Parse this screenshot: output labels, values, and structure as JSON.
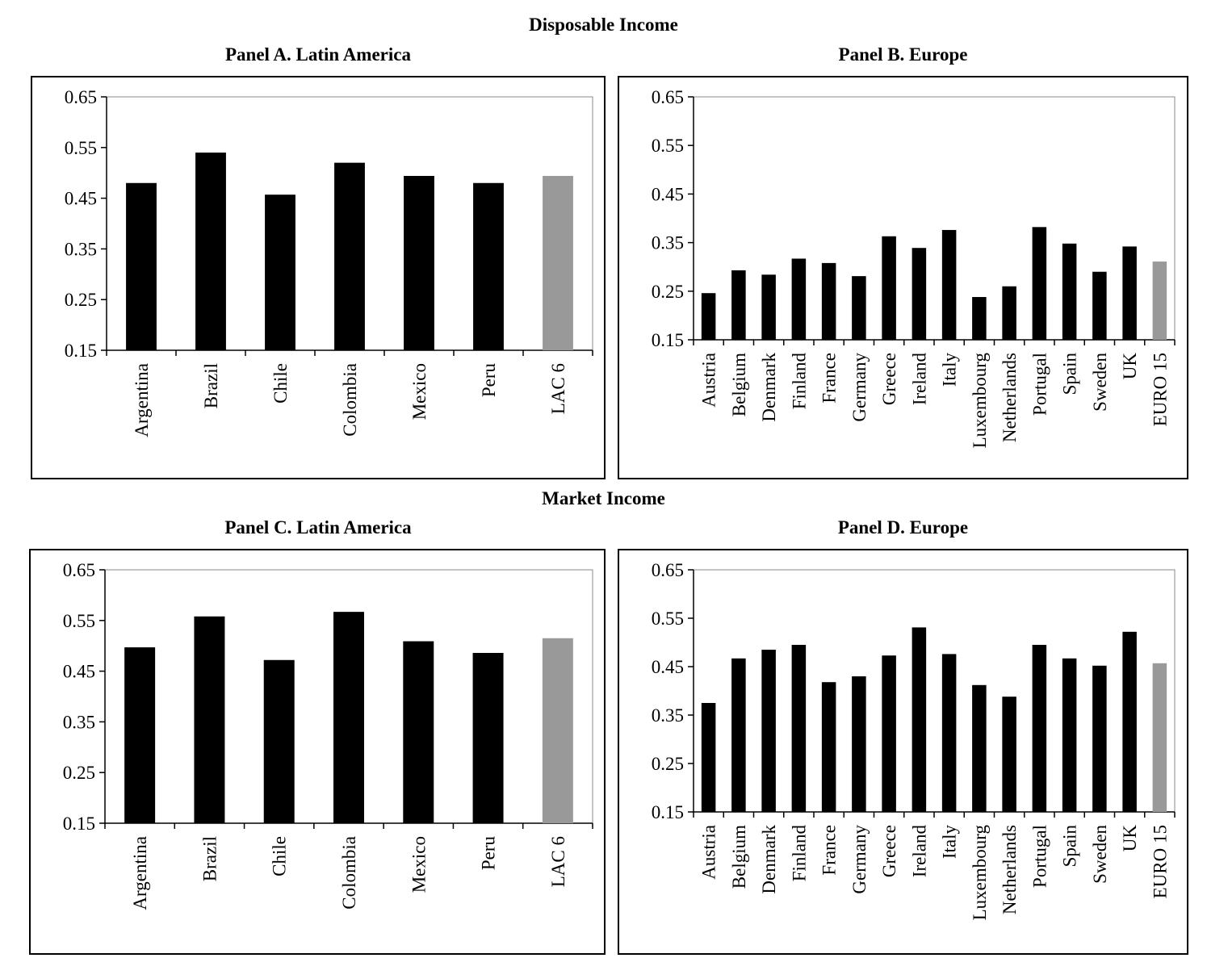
{
  "sections": {
    "disposable": "Disposable Income",
    "market": "Market Income"
  },
  "colors": {
    "bar": "#000000",
    "aggregate_bar": "#999999",
    "axis": "#000000"
  },
  "chart_data": [
    {
      "type": "bar",
      "title": "Panel A. Latin America",
      "categories": [
        "Argentina",
        "Brazil",
        "Chile",
        "Colombia",
        "Mexico",
        "Peru",
        "LAC 6"
      ],
      "values": [
        0.48,
        0.54,
        0.457,
        0.52,
        0.494,
        0.48,
        0.494
      ],
      "highlight": [
        "LAC 6"
      ],
      "ylim": [
        0.15,
        0.65
      ],
      "yticks": [
        "0.65",
        "0.55",
        "0.45",
        "0.35",
        "0.25",
        "0.15"
      ],
      "xlabel": "",
      "ylabel": "",
      "grid": false
    },
    {
      "type": "bar",
      "title": "Panel B. Europe",
      "categories": [
        "Austria",
        "Belgium",
        "Denmark",
        "Finland",
        "France",
        "Germany",
        "Greece",
        "Ireland",
        "Italy",
        "Luxembourg",
        "Netherlands",
        "Portugal",
        "Spain",
        "Sweden",
        "UK",
        "EURO 15"
      ],
      "values": [
        0.246,
        0.293,
        0.284,
        0.317,
        0.308,
        0.281,
        0.363,
        0.339,
        0.376,
        0.238,
        0.26,
        0.382,
        0.348,
        0.29,
        0.342,
        0.311
      ],
      "highlight": [
        "EURO 15"
      ],
      "ylim": [
        0.15,
        0.65
      ],
      "yticks": [
        "0.65",
        "0.55",
        "0.45",
        "0.35",
        "0.25",
        "0.15"
      ],
      "xlabel": "",
      "ylabel": "",
      "grid": false
    },
    {
      "type": "bar",
      "title": "Panel C. Latin America",
      "categories": [
        "Argentina",
        "Brazil",
        "Chile",
        "Colombia",
        "Mexico",
        "Peru",
        "LAC 6"
      ],
      "values": [
        0.497,
        0.558,
        0.472,
        0.567,
        0.509,
        0.486,
        0.515
      ],
      "highlight": [
        "LAC 6"
      ],
      "ylim": [
        0.15,
        0.65
      ],
      "yticks": [
        "0.65",
        "0.55",
        "0.45",
        "0.35",
        "0.25",
        "0.15"
      ],
      "xlabel": "",
      "ylabel": "",
      "grid": false
    },
    {
      "type": "bar",
      "title": "Panel D. Europe",
      "categories": [
        "Austria",
        "Belgium",
        "Denmark",
        "Finland",
        "France",
        "Germany",
        "Greece",
        "Ireland",
        "Italy",
        "Luxembourg",
        "Netherlands",
        "Portugal",
        "Spain",
        "Sweden",
        "UK",
        "EURO 15"
      ],
      "values": [
        0.375,
        0.467,
        0.485,
        0.495,
        0.418,
        0.43,
        0.473,
        0.531,
        0.476,
        0.412,
        0.388,
        0.495,
        0.467,
        0.452,
        0.522,
        0.457
      ],
      "highlight": [
        "EURO 15"
      ],
      "ylim": [
        0.15,
        0.65
      ],
      "yticks": [
        "0.65",
        "0.55",
        "0.45",
        "0.35",
        "0.25",
        "0.15"
      ],
      "xlabel": "",
      "ylabel": "",
      "grid": false
    }
  ]
}
